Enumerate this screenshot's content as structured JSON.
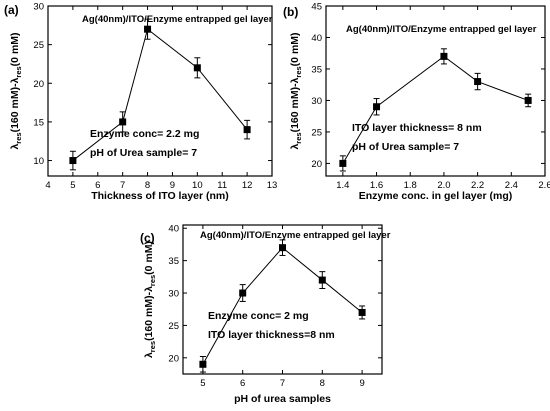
{
  "chart_data": [
    {
      "type": "line",
      "panel_label": "(a)",
      "title": "Ag(40nm)/ITO/Enzyme entrapped gel layer",
      "xlabel": "Thickness of ITO layer (nm)",
      "ylabel": {
        "pre": "λ",
        "sub1": "res",
        "mid": "(160 mM)-λ",
        "sub2": "res",
        "post": "(0 mM)"
      },
      "xlim": [
        4,
        13
      ],
      "ylim": [
        8,
        30
      ],
      "xticks": [
        4,
        5,
        6,
        7,
        8,
        9,
        10,
        11,
        12,
        13
      ],
      "xtick_labels": [
        "4",
        "5",
        "6",
        "7",
        "8",
        "9",
        "10",
        "11",
        "12",
        "13"
      ],
      "yticks": [
        10,
        15,
        20,
        25,
        30
      ],
      "ytick_labels": [
        "10",
        "15",
        "20",
        "25",
        "30"
      ],
      "x": [
        5,
        7,
        8,
        10,
        12
      ],
      "y": [
        10,
        15,
        27,
        22,
        14
      ],
      "yerr": [
        1.2,
        1.3,
        1.3,
        1.3,
        1.2
      ],
      "annotations": [
        "Enzyme conc= 2.2 mg",
        "pH of Urea sample= 7"
      ]
    },
    {
      "type": "line",
      "panel_label": "(b)",
      "title": "Ag(40nm)/ITO/Enzyme entrapped gel layer",
      "xlabel": "Enzyme conc. in gel layer (mg)",
      "ylabel": {
        "pre": "λ",
        "sub1": "res",
        "mid": "(160 mM)-λ",
        "sub2": "res",
        "post": "(0 mM)"
      },
      "xlim": [
        1.3,
        2.6
      ],
      "ylim": [
        18,
        45
      ],
      "xticks": [
        1.4,
        1.6,
        1.8,
        2.0,
        2.2,
        2.4,
        2.6
      ],
      "xtick_labels": [
        "1.4",
        "1.6",
        "1.8",
        "2.0",
        "2.2",
        "2.4",
        "2.6"
      ],
      "yticks": [
        20,
        25,
        30,
        35,
        40,
        45
      ],
      "ytick_labels": [
        "20",
        "25",
        "30",
        "35",
        "40",
        "45"
      ],
      "x": [
        1.4,
        1.6,
        2.0,
        2.2,
        2.5
      ],
      "y": [
        20,
        29,
        37,
        33,
        30
      ],
      "yerr": [
        1.2,
        1.3,
        1.2,
        1.3,
        1.0
      ],
      "annotations": [
        "ITO layer thickness= 8 nm",
        "pH of Urea sample= 7"
      ]
    },
    {
      "type": "line",
      "panel_label": "(c)",
      "title": "Ag(40nm)/ITO/Enzyme entrapped gel layer",
      "xlabel": "pH of urea samples",
      "ylabel": {
        "pre": "λ",
        "sub1": "res",
        "mid": "(160 mM)-λ",
        "sub2": "res",
        "post": "(0 mM)"
      },
      "xlim": [
        4.5,
        9.5
      ],
      "ylim": [
        17.5,
        40.5
      ],
      "xticks": [
        5,
        6,
        7,
        8,
        9
      ],
      "xtick_labels": [
        "5",
        "6",
        "7",
        "8",
        "9"
      ],
      "yticks": [
        20,
        25,
        30,
        35,
        40
      ],
      "ytick_labels": [
        "20",
        "25",
        "30",
        "35",
        "40"
      ],
      "x": [
        5,
        6,
        7,
        8,
        9
      ],
      "y": [
        19,
        30,
        37,
        32,
        27
      ],
      "yerr": [
        1.2,
        1.3,
        1.2,
        1.3,
        1.0
      ],
      "annotations": [
        "Enzyme conc= 2 mg",
        "ITO layer thickness=8 nm"
      ]
    }
  ]
}
